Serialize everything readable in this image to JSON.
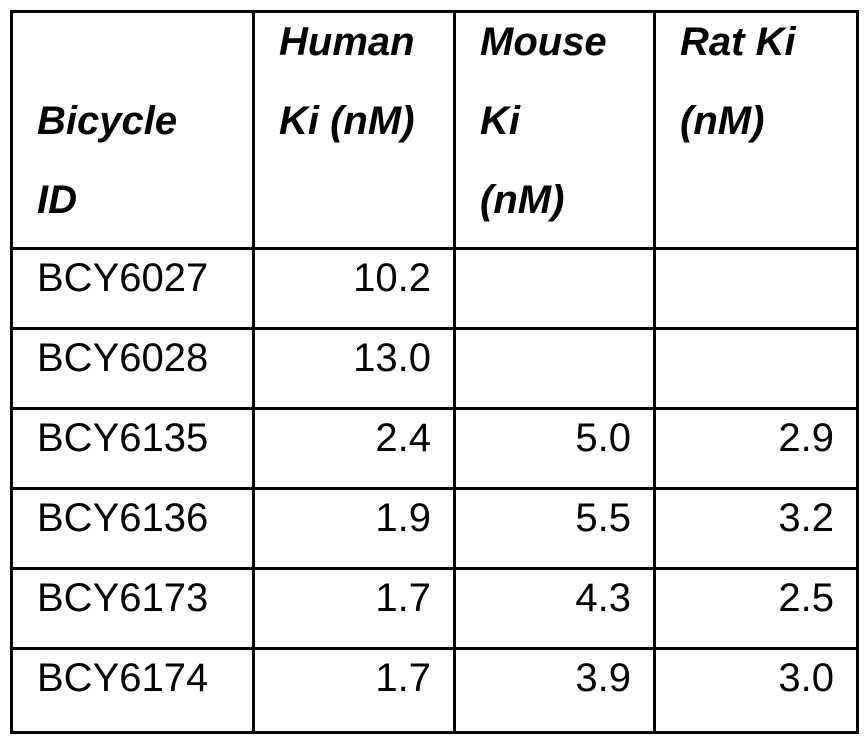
{
  "table": {
    "headers": [
      {
        "label": "Bicycle\nID",
        "lines": [
          "Bicycle",
          "ID"
        ]
      },
      {
        "label": "Human\nKi (nM)",
        "lines": [
          "Human",
          "Ki (nM)"
        ]
      },
      {
        "label": "Mouse\nKi\n(nM)",
        "lines": [
          "Mouse",
          "Ki",
          "(nM)"
        ]
      },
      {
        "label": "Rat Ki\n(nM)",
        "lines": [
          "Rat Ki",
          "(nM)"
        ]
      }
    ],
    "rows": [
      {
        "id": "BCY6027",
        "human": "10.2",
        "mouse": "",
        "rat": ""
      },
      {
        "id": "BCY6028",
        "human": "13.0",
        "mouse": "",
        "rat": ""
      },
      {
        "id": "BCY6135",
        "human": "2.4",
        "mouse": "5.0",
        "rat": "2.9"
      },
      {
        "id": "BCY6136",
        "human": "1.9",
        "mouse": "5.5",
        "rat": "3.2"
      },
      {
        "id": "BCY6173",
        "human": "1.7",
        "mouse": "4.3",
        "rat": "2.5"
      },
      {
        "id": "BCY6174",
        "human": "1.7",
        "mouse": "3.9",
        "rat": "3.0"
      }
    ]
  }
}
